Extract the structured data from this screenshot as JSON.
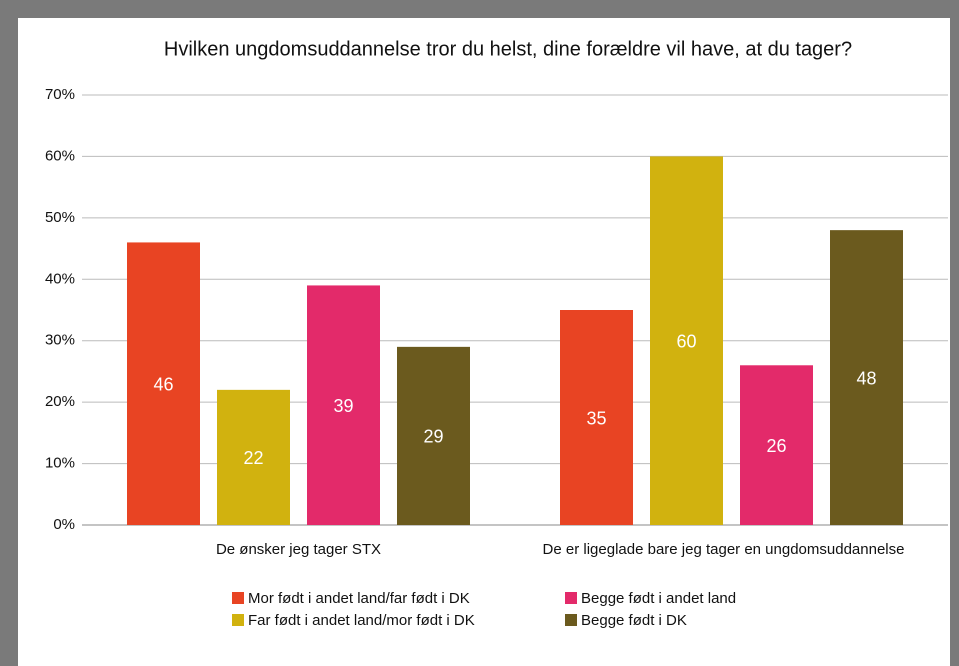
{
  "chart_data": {
    "type": "bar",
    "title": "Hvilken ungdomsuddannelse tror du helst, dine forældre vil have, at du tager?",
    "categories": [
      "De ønsker jeg tager STX",
      "De er ligeglade bare jeg tager en ungdomsuddannelse"
    ],
    "series": [
      {
        "name": "Mor født i andet land/far født i DK",
        "color": "#e84423",
        "values": [
          46,
          35
        ]
      },
      {
        "name": "Far født i andet land/mor født i DK",
        "color": "#d1b20f",
        "values": [
          22,
          60
        ]
      },
      {
        "name": "Begge født i andet land",
        "color": "#e32a6a",
        "values": [
          39,
          26
        ]
      },
      {
        "name": "Begge født i DK",
        "color": "#6b5a1e",
        "values": [
          29,
          48
        ]
      }
    ],
    "ylim": [
      0,
      70
    ],
    "yticks": [
      {
        "value": 0,
        "label": "0%"
      },
      {
        "value": 10,
        "label": "10%"
      },
      {
        "value": 20,
        "label": "20%"
      },
      {
        "value": 30,
        "label": "30%"
      },
      {
        "value": 40,
        "label": "40%"
      },
      {
        "value": 50,
        "label": "50%"
      },
      {
        "value": 60,
        "label": "60%"
      },
      {
        "value": 70,
        "label": "70%"
      }
    ],
    "grid": true
  }
}
